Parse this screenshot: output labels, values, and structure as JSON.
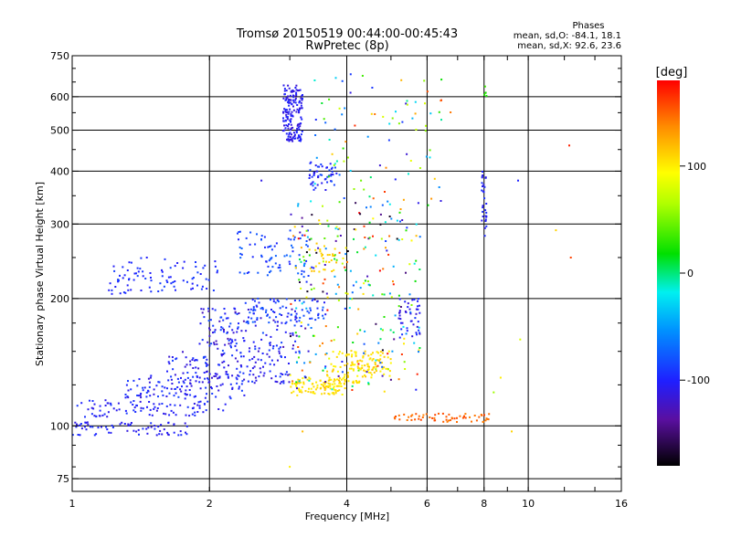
{
  "header": {
    "title": "Tromsø 20150519 00:44:00-00:45:43",
    "subtitle": "RwPretec (8p)",
    "stats": {
      "heading": "Phases",
      "line1": "mean, sd,O: -84.1, 18.1",
      "line2": "mean, sd,X:  92.6, 23.6"
    }
  },
  "colorbar": {
    "label": "[deg]",
    "range": [
      -180,
      180
    ],
    "ticks": [
      {
        "value": 100,
        "label": "100"
      },
      {
        "value": 0,
        "label": "0"
      },
      {
        "value": -100,
        "label": "-100"
      }
    ]
  },
  "chart_data": {
    "type": "scatter",
    "xlabel": "Frequency [MHz]",
    "ylabel": "Stationary phase Virtual Height [km]",
    "xscale": "log",
    "yscale": "log",
    "xlim": [
      1,
      16
    ],
    "ylim": [
      70,
      750
    ],
    "xticks": [
      {
        "value": 1,
        "label": "1"
      },
      {
        "value": 2,
        "label": "2"
      },
      {
        "value": 4,
        "label": "4"
      },
      {
        "value": 6,
        "label": "6"
      },
      {
        "value": 8,
        "label": "8"
      },
      {
        "value": 10,
        "label": "10"
      },
      {
        "value": 16,
        "label": "16"
      }
    ],
    "yticks": [
      {
        "value": 75,
        "label": "75"
      },
      {
        "value": 100,
        "label": "100"
      },
      {
        "value": 200,
        "label": "200"
      },
      {
        "value": 300,
        "label": "300"
      },
      {
        "value": 400,
        "label": "400"
      },
      {
        "value": 500,
        "label": "500"
      },
      {
        "value": 600,
        "label": "600"
      },
      {
        "value": 750,
        "label": "750"
      }
    ],
    "grid": true,
    "clusters": [
      {
        "f": [
          1.0,
          1.8
        ],
        "h": [
          95,
          102
        ],
        "phase": [
          -115,
          -90
        ],
        "n": 70
      },
      {
        "f": [
          1.0,
          2.2
        ],
        "h": [
          105,
          115
        ],
        "phase": [
          -115,
          -90
        ],
        "n": 90
      },
      {
        "f": [
          1.3,
          2.4
        ],
        "h": [
          116,
          132
        ],
        "phase": [
          -115,
          -85
        ],
        "n": 110
      },
      {
        "f": [
          1.6,
          3.0
        ],
        "h": [
          125,
          150
        ],
        "phase": [
          -120,
          -85
        ],
        "n": 140
      },
      {
        "f": [
          1.9,
          3.2
        ],
        "h": [
          150,
          190
        ],
        "phase": [
          -130,
          -80
        ],
        "n": 140
      },
      {
        "f": [
          1.2,
          2.1
        ],
        "h": [
          205,
          250
        ],
        "phase": [
          -105,
          -85
        ],
        "n": 90
      },
      {
        "f": [
          2.3,
          3.3
        ],
        "h": [
          225,
          290
        ],
        "phase": [
          -100,
          -70
        ],
        "n": 80
      },
      {
        "f": [
          2.4,
          3.6
        ],
        "h": [
          175,
          200
        ],
        "phase": [
          -105,
          -70
        ],
        "n": 70
      },
      {
        "f": [
          2.9,
          3.2
        ],
        "h": [
          470,
          640
        ],
        "phase": [
          -120,
          -95
        ],
        "n": 170
      },
      {
        "f": [
          3.3,
          3.8
        ],
        "h": [
          360,
          420
        ],
        "phase": [
          -110,
          -80
        ],
        "n": 50
      },
      {
        "f": [
          3.0,
          4.0
        ],
        "h": [
          118,
          130
        ],
        "phase": [
          95,
          115
        ],
        "n": 100
      },
      {
        "f": [
          3.6,
          4.3
        ],
        "h": [
          125,
          150
        ],
        "phase": [
          95,
          115
        ],
        "n": 70
      },
      {
        "f": [
          4.3,
          5.0
        ],
        "h": [
          130,
          150
        ],
        "phase": [
          95,
          115
        ],
        "n": 60
      },
      {
        "f": [
          3.3,
          3.8
        ],
        "h": [
          230,
          270
        ],
        "phase": [
          100,
          120
        ],
        "n": 30
      },
      {
        "f": [
          3.0,
          5.8
        ],
        "h": [
          120,
          340
        ],
        "phase": [
          -180,
          180
        ],
        "n": 280
      },
      {
        "f": [
          5.2,
          5.8
        ],
        "h": [
          160,
          200
        ],
        "phase": [
          -120,
          -90
        ],
        "n": 40
      },
      {
        "f": [
          5.0,
          8.3
        ],
        "h": [
          102,
          107
        ],
        "phase": [
          140,
          160
        ],
        "n": 60
      },
      {
        "f": [
          3.4,
          6.8
        ],
        "h": [
          330,
          680
        ],
        "phase": [
          -120,
          170
        ],
        "n": 90
      },
      {
        "f": [
          7.9,
          8.1
        ],
        "h": [
          280,
          400
        ],
        "phase": [
          -110,
          -90
        ],
        "n": 30
      },
      {
        "f": [
          8.0,
          8.1
        ],
        "h": [
          600,
          640
        ],
        "phase": [
          20,
          40
        ],
        "n": 5
      }
    ],
    "isolated_points": [
      {
        "f": 12.3,
        "h": 460,
        "phase": 170
      },
      {
        "f": 12.4,
        "h": 250,
        "phase": 160
      },
      {
        "f": 11.5,
        "h": 290,
        "phase": 110
      },
      {
        "f": 9.5,
        "h": 380,
        "phase": -100
      },
      {
        "f": 9.6,
        "h": 160,
        "phase": 80
      },
      {
        "f": 8.7,
        "h": 130,
        "phase": 100
      },
      {
        "f": 8.4,
        "h": 120,
        "phase": 60
      },
      {
        "f": 9.2,
        "h": 97,
        "phase": 110
      },
      {
        "f": 3.0,
        "h": 80,
        "phase": 100
      },
      {
        "f": 3.2,
        "h": 97,
        "phase": 120
      },
      {
        "f": 2.6,
        "h": 380,
        "phase": -110
      }
    ]
  }
}
